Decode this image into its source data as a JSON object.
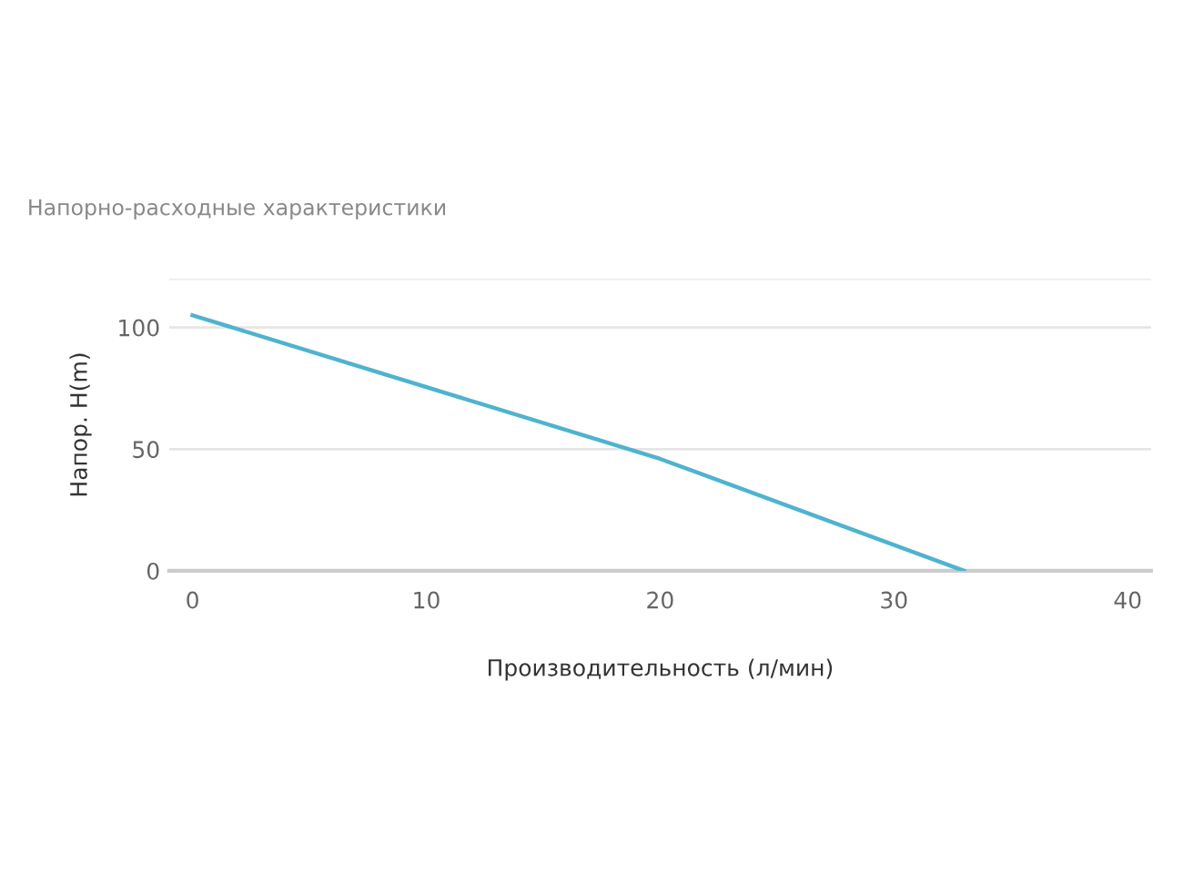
{
  "chart_data": {
    "type": "line",
    "title": "Напорно-расходные характеристики",
    "xlabel": "Производительность (л/мин)",
    "ylabel": "Напор. H(m)",
    "x": [
      0,
      20,
      33
    ],
    "series": [
      {
        "color": "#4fb3cf",
        "values": [
          105,
          46,
          0
        ]
      }
    ],
    "xlim": [
      -1,
      41
    ],
    "xticks": [
      0,
      10,
      20,
      30,
      40
    ],
    "ylim": [
      0,
      120
    ],
    "yticks": [
      0,
      50,
      100,
      {
        "value": 120,
        "label": null
      }
    ],
    "grid": "y",
    "marker": "none",
    "line_style": "solid"
  }
}
